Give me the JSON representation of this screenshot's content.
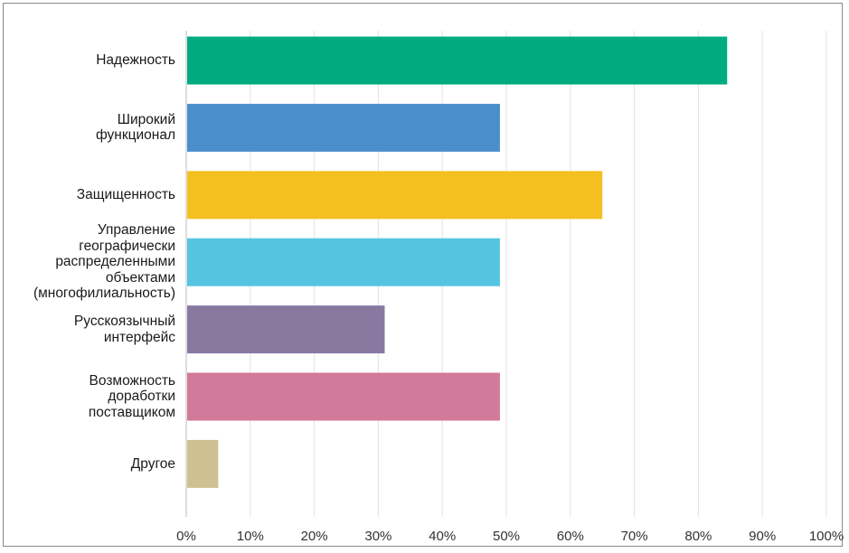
{
  "chart_data": {
    "type": "bar",
    "orientation": "horizontal",
    "title": "",
    "xlabel": "",
    "ylabel": "",
    "categories": [
      "Надежность",
      "Широкий функционал",
      "Защищенность",
      "Управление географически распределенными объектами (многофилиальность)",
      "Русскоязычный интерфейс",
      "Возможность доработки поставщиком",
      "Другое"
    ],
    "category_lines": [
      [
        "Надежность"
      ],
      [
        "Широкий",
        "функционал"
      ],
      [
        "Защищенность"
      ],
      [
        "Управление",
        "географически",
        "распределенными",
        "объектами",
        "(многофилиальность)"
      ],
      [
        "Русскоязычный",
        "интерфейс"
      ],
      [
        "Возможность",
        "доработки",
        "поставщиком"
      ],
      [
        "Другое"
      ]
    ],
    "values": [
      84.5,
      49,
      65,
      49,
      31,
      49,
      5
    ],
    "colors": [
      "#00ab7f",
      "#4a8fcb",
      "#f4c020",
      "#54c5e1",
      "#8979a1",
      "#d27a9a",
      "#cfc092"
    ],
    "xlim": [
      0,
      100
    ],
    "ticks": [
      "0%",
      "10%",
      "20%",
      "30%",
      "40%",
      "50%",
      "60%",
      "70%",
      "80%",
      "90%",
      "100%"
    ],
    "grid": true,
    "legend": "none"
  }
}
